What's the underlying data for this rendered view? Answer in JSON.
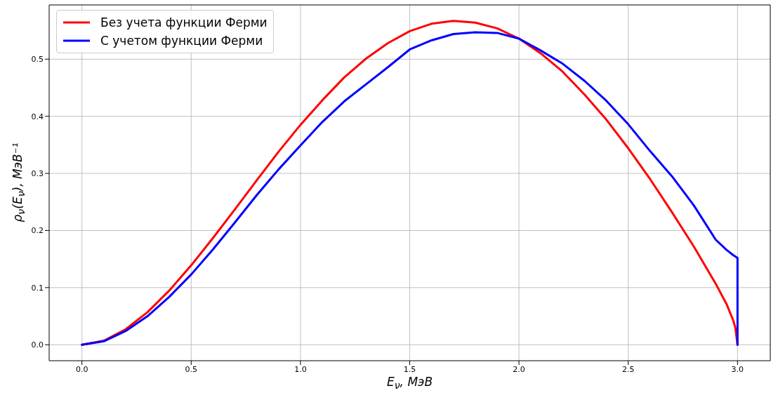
{
  "chart_data": {
    "type": "line",
    "xlabel": "E$_{ν}$,  МэВ",
    "ylabel": "ρ$_{ν}$(E$_{ν}$),  МэВ⁻¹",
    "xlim": [
      -0.15,
      3.15
    ],
    "ylim": [
      -0.028,
      0.595
    ],
    "xticks": [
      {
        "value": 0,
        "label": "0.0"
      },
      {
        "value": 0.5,
        "label": "0.5"
      },
      {
        "value": 1,
        "label": "1.0"
      },
      {
        "value": 1.5,
        "label": "1.5"
      },
      {
        "value": 2,
        "label": "2.0"
      },
      {
        "value": 2.5,
        "label": "2.5"
      },
      {
        "value": 3,
        "label": "3.0"
      }
    ],
    "yticks": [
      {
        "value": 0,
        "label": "0.0"
      },
      {
        "value": 0.1,
        "label": "0.1"
      },
      {
        "value": 0.2,
        "label": "0.2"
      },
      {
        "value": 0.3,
        "label": "0.3"
      },
      {
        "value": 0.4,
        "label": "0.4"
      },
      {
        "value": 0.5,
        "label": "0.5"
      }
    ],
    "grid": true,
    "legend": "top left",
    "marker": "none",
    "line_style": "solid",
    "series": [
      {
        "name": "Без учета функции Ферми",
        "color": "#ff0000",
        "x": [
          0,
          0.1,
          0.2,
          0.3,
          0.4,
          0.5,
          0.6,
          0.7,
          0.8,
          0.9,
          1.0,
          1.1,
          1.2,
          1.3,
          1.4,
          1.5,
          1.6,
          1.7,
          1.8,
          1.9,
          2.0,
          2.1,
          2.2,
          2.3,
          2.4,
          2.5,
          2.6,
          2.7,
          2.8,
          2.9,
          2.95,
          2.98,
          2.99,
          3.0
        ],
        "values": [
          0,
          0.007,
          0.027,
          0.057,
          0.095,
          0.139,
          0.187,
          0.237,
          0.288,
          0.338,
          0.385,
          0.428,
          0.468,
          0.501,
          0.528,
          0.549,
          0.562,
          0.567,
          0.564,
          0.554,
          0.536,
          0.51,
          0.478,
          0.438,
          0.394,
          0.344,
          0.29,
          0.232,
          0.172,
          0.107,
          0.071,
          0.043,
          0.03,
          0
        ]
      },
      {
        "name": "С учетом функции Ферми",
        "color": "#0000ff",
        "x": [
          0,
          0.1,
          0.2,
          0.3,
          0.4,
          0.5,
          0.6,
          0.7,
          0.8,
          0.9,
          1.0,
          1.1,
          1.2,
          1.3,
          1.4,
          1.5,
          1.6,
          1.7,
          1.8,
          1.9,
          2.0,
          2.1,
          2.2,
          2.3,
          2.4,
          2.5,
          2.6,
          2.7,
          2.8,
          2.9,
          2.95,
          2.98,
          3.0,
          3.0
        ],
        "values": [
          0,
          0.006,
          0.024,
          0.05,
          0.084,
          0.123,
          0.167,
          0.214,
          0.262,
          0.307,
          0.349,
          0.39,
          0.426,
          0.456,
          0.486,
          0.517,
          0.533,
          0.544,
          0.547,
          0.546,
          0.536,
          0.515,
          0.492,
          0.462,
          0.427,
          0.386,
          0.339,
          0.295,
          0.244,
          0.184,
          0.166,
          0.157,
          0.152,
          0
        ]
      }
    ]
  }
}
